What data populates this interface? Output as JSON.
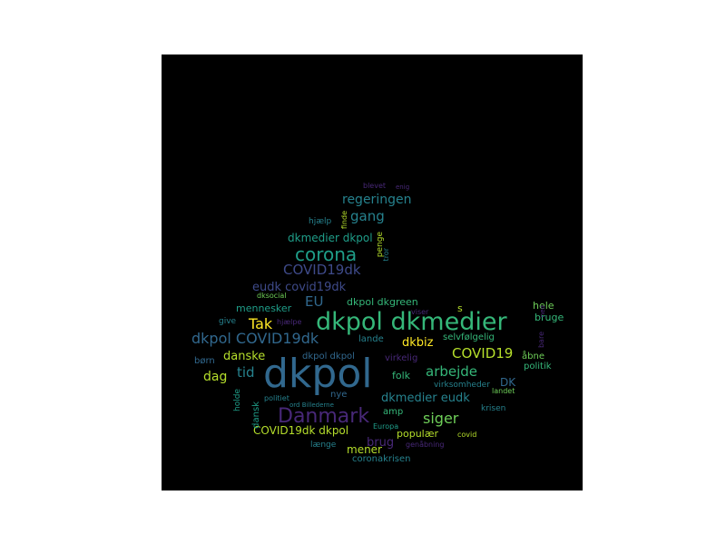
{
  "palette": {
    "purple": "#482878",
    "dark_blue": "#3e4a89",
    "blue": "#31688e",
    "teal": "#26828e",
    "green_teal": "#1f9e89",
    "green": "#35b779",
    "light_green": "#6ece58",
    "yellow_green": "#b5de2b",
    "yellow": "#fde725"
  },
  "words": [
    {
      "text": "dkpol",
      "color": "#31688e"
    },
    {
      "text": "dkpol dkmedier",
      "color": "#35b779"
    },
    {
      "text": "Danmark",
      "color": "#482878"
    },
    {
      "text": "corona",
      "color": "#1f9e89"
    },
    {
      "text": "COVID19dk",
      "color": "#3e4a89"
    },
    {
      "text": "dkpol COVID19dk",
      "color": "#31688e"
    },
    {
      "text": "regeringen",
      "color": "#26828e"
    },
    {
      "text": "gang",
      "color": "#26828e"
    },
    {
      "text": "dkmedier dkpol",
      "color": "#1f9e89"
    },
    {
      "text": "eudk covid19dk",
      "color": "#3e4a89"
    },
    {
      "text": "EU",
      "color": "#31688e"
    },
    {
      "text": "Tak",
      "color": "#fde725"
    },
    {
      "text": "COVID19",
      "color": "#b5de2b"
    },
    {
      "text": "arbejde",
      "color": "#35b779"
    },
    {
      "text": "siger",
      "color": "#6ece58"
    },
    {
      "text": "dkbiz",
      "color": "#fde725"
    },
    {
      "text": "danske",
      "color": "#b5de2b"
    },
    {
      "text": "tid",
      "color": "#26828e"
    },
    {
      "text": "dag",
      "color": "#b5de2b"
    },
    {
      "text": "dkmedier eudk",
      "color": "#26828e"
    },
    {
      "text": "brug",
      "color": "#482878"
    },
    {
      "text": "COVID19dk dkpol",
      "color": "#b5de2b"
    },
    {
      "text": "mener",
      "color": "#b5de2b"
    },
    {
      "text": "populær",
      "color": "#b5de2b"
    },
    {
      "text": "folk",
      "color": "#35b779"
    },
    {
      "text": "mennesker",
      "color": "#1f9e89"
    },
    {
      "text": "dkpol dkgreen",
      "color": "#35b779"
    },
    {
      "text": "selvfølgelig",
      "color": "#35b779"
    },
    {
      "text": "hele",
      "color": "#6ece58"
    },
    {
      "text": "bruge",
      "color": "#35b779"
    },
    {
      "text": "lande",
      "color": "#26828e"
    },
    {
      "text": "s",
      "color": "#b5de2b"
    },
    {
      "text": "politik",
      "color": "#35b779"
    },
    {
      "text": "åbne",
      "color": "#6ece58"
    },
    {
      "text": "DK",
      "color": "#31688e"
    },
    {
      "text": "virksomheder",
      "color": "#26828e"
    },
    {
      "text": "krisen",
      "color": "#26828e"
    },
    {
      "text": "landet",
      "color": "#6ece58"
    },
    {
      "text": "nye",
      "color": "#31688e"
    },
    {
      "text": "amp",
      "color": "#35b779"
    },
    {
      "text": "dansk",
      "color": "#1f9e89"
    },
    {
      "text": "holde",
      "color": "#1f9e89"
    },
    {
      "text": "politiet",
      "color": "#26828e"
    },
    {
      "text": "ord Billederne",
      "color": "#26828e"
    },
    {
      "text": "dkpol dkpol",
      "color": "#31688e"
    },
    {
      "text": "virkelig",
      "color": "#482878"
    },
    {
      "text": "børn",
      "color": "#31688e"
    },
    {
      "text": "give",
      "color": "#26828e"
    },
    {
      "text": "hjælpe",
      "color": "#482878"
    },
    {
      "text": "dksocial",
      "color": "#6ece58"
    },
    {
      "text": "viser",
      "color": "#482878"
    },
    {
      "text": "Europa",
      "color": "#1f9e89"
    },
    {
      "text": "covid",
      "color": "#b5de2b"
    },
    {
      "text": "genåbning",
      "color": "#482878"
    },
    {
      "text": "længe",
      "color": "#26828e"
    },
    {
      "text": "coronakrisen",
      "color": "#26828e"
    },
    {
      "text": "hjælp",
      "color": "#26828e"
    },
    {
      "text": "finde",
      "color": "#b5de2b"
    },
    {
      "text": "penge",
      "color": "#b5de2b"
    },
    {
      "text": "tror",
      "color": "#26828e"
    },
    {
      "text": "blevet",
      "color": "#482878"
    },
    {
      "text": "enig",
      "color": "#482878"
    },
    {
      "text": "bare",
      "color": "#482878"
    },
    {
      "text": "ned",
      "color": "#482878"
    }
  ]
}
